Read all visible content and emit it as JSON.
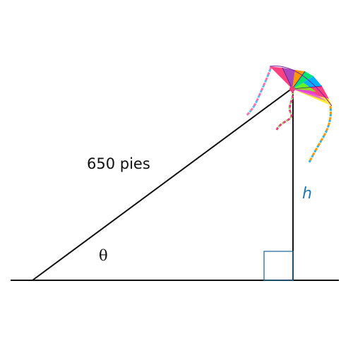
{
  "diagram": {
    "hypotenuse_label": "650 pies",
    "angle_label": "θ",
    "height_label": "h",
    "colors": {
      "line": "#111111",
      "right_angle_marker": "#2a6f9b",
      "height_label": "#1f78b4"
    },
    "icons": {
      "kite": "kite-icon"
    }
  }
}
